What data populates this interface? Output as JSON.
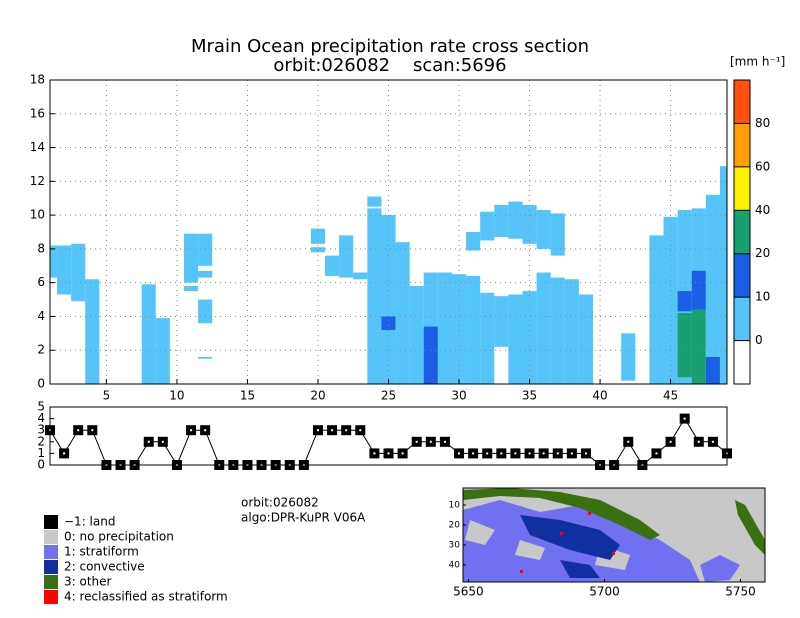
{
  "chart_data": [
    {
      "type": "cross-section",
      "title": "Mrain Ocean precipitation rate cross section",
      "subtitle": "orbit:026082    scan:5696",
      "xlim": [
        1,
        49
      ],
      "ylim": [
        0,
        18
      ],
      "xticks": [
        5,
        10,
        15,
        20,
        25,
        30,
        35,
        40,
        45
      ],
      "yticks": [
        0,
        2,
        4,
        6,
        8,
        10,
        12,
        14,
        16,
        18
      ],
      "grid": true,
      "colorbar": {
        "label": "[mm h⁻¹]",
        "ticks": [
          0,
          10,
          20,
          40,
          60,
          80
        ],
        "colors": [
          "#ffffff",
          "#55c4f8",
          "#1a5fe6",
          "#18a070",
          "#fff200",
          "#ffa000",
          "#ff5010"
        ]
      },
      "segments": [
        [
          1,
          6.3,
          8.2,
          5
        ],
        [
          2,
          5.3,
          8.2,
          5
        ],
        [
          3,
          4.9,
          8.3,
          5
        ],
        [
          4,
          0,
          6.2,
          5
        ],
        [
          8,
          0,
          5.9,
          5
        ],
        [
          9,
          0,
          3.9,
          5
        ],
        [
          11,
          6,
          8.9,
          5
        ],
        [
          12,
          7,
          8.9,
          5
        ],
        [
          12,
          6.3,
          6.7,
          5
        ],
        [
          11,
          5.5,
          5.8,
          5
        ],
        [
          12,
          3.6,
          5,
          5
        ],
        [
          12,
          1.5,
          1.6,
          5
        ],
        [
          20,
          8.3,
          9.2,
          5
        ],
        [
          20,
          7.8,
          8.1,
          5
        ],
        [
          21,
          6.4,
          7.6,
          5
        ],
        [
          22,
          6.3,
          8.8,
          5
        ],
        [
          23,
          6.2,
          6.6,
          5
        ],
        [
          24,
          0,
          10.4,
          5
        ],
        [
          24,
          10.5,
          11.1,
          5
        ],
        [
          25,
          0,
          10,
          5
        ],
        [
          25,
          3.2,
          4,
          15
        ],
        [
          26,
          0,
          8.4,
          5
        ],
        [
          27,
          0,
          5.8,
          5
        ],
        [
          28,
          0,
          6.6,
          5
        ],
        [
          28,
          0,
          3.4,
          15
        ],
        [
          29,
          0,
          6.6,
          5
        ],
        [
          30,
          0,
          6.5,
          5
        ],
        [
          31,
          0,
          6.4,
          5
        ],
        [
          32,
          0,
          5.4,
          5
        ],
        [
          33,
          2.2,
          5.2,
          5
        ],
        [
          34,
          0,
          5.3,
          5
        ],
        [
          35,
          0,
          5.5,
          5
        ],
        [
          36,
          0,
          6.6,
          5
        ],
        [
          37,
          0,
          6.3,
          5
        ],
        [
          38,
          0,
          6.2,
          5
        ],
        [
          39,
          0,
          5.3,
          5
        ],
        [
          31,
          7.9,
          9,
          5
        ],
        [
          32,
          8.5,
          10.2,
          5
        ],
        [
          33,
          8.7,
          10.6,
          5
        ],
        [
          34,
          8.6,
          10.8,
          5
        ],
        [
          35,
          8.3,
          10.6,
          5
        ],
        [
          36,
          8,
          10.3,
          5
        ],
        [
          37,
          7.6,
          10.1,
          5
        ],
        [
          42,
          0.2,
          3,
          5
        ],
        [
          44,
          0,
          8.8,
          5
        ],
        [
          45,
          0,
          9.9,
          5
        ],
        [
          46,
          0,
          10.3,
          5
        ],
        [
          46,
          0.4,
          4.2,
          30
        ],
        [
          46,
          4.3,
          5.5,
          15
        ],
        [
          47,
          0,
          10.4,
          5
        ],
        [
          47,
          0,
          4.4,
          30
        ],
        [
          47,
          4.4,
          6.7,
          15
        ],
        [
          48,
          0,
          11.2,
          5
        ],
        [
          48,
          0,
          1.6,
          15
        ],
        [
          49,
          0,
          12.9,
          5
        ]
      ]
    },
    {
      "type": "line",
      "xlim": [
        1,
        49
      ],
      "ylim": [
        0,
        5
      ],
      "yticks": [
        0,
        1,
        2,
        3,
        4,
        5
      ],
      "x": [
        1,
        2,
        3,
        4,
        5,
        6,
        7,
        8,
        9,
        10,
        11,
        12,
        13,
        14,
        15,
        16,
        17,
        18,
        19,
        20,
        21,
        22,
        23,
        24,
        25,
        26,
        27,
        28,
        29,
        30,
        31,
        32,
        33,
        34,
        35,
        36,
        37,
        38,
        39,
        40,
        41,
        42,
        43,
        44,
        45,
        46,
        47,
        48,
        49
      ],
      "values": [
        3,
        1,
        3,
        3,
        0,
        0,
        0,
        2,
        2,
        0,
        3,
        3,
        0,
        0,
        0,
        0,
        0,
        0,
        0,
        3,
        3,
        3,
        3,
        1,
        1,
        1,
        2,
        2,
        2,
        1,
        1,
        1,
        1,
        1,
        1,
        1,
        1,
        1,
        1,
        0,
        0,
        2,
        0,
        1,
        2,
        4,
        2,
        2,
        1
      ],
      "color": "#000000"
    },
    {
      "type": "map",
      "xlim": [
        5648,
        5759
      ],
      "ylim": [
        1.5,
        48.5
      ],
      "xticks": [
        5650,
        5700,
        5750
      ],
      "yticks": [
        10,
        20,
        30,
        40
      ],
      "info": [
        "orbit:026082",
        "algo:DPR-KuPR V06A"
      ],
      "legend": [
        {
          "name": "−1: land",
          "color": "#000000"
        },
        {
          "name": "0: no precipitation",
          "color": "#c8c8c8"
        },
        {
          "name": "1: stratiform",
          "color": "#7070f0"
        },
        {
          "name": "2: convective",
          "color": "#1030a0"
        },
        {
          "name": "3: other",
          "color": "#3a7010"
        },
        {
          "name": "4: reclassified as stratiform",
          "color": "#ff0000"
        }
      ]
    }
  ]
}
